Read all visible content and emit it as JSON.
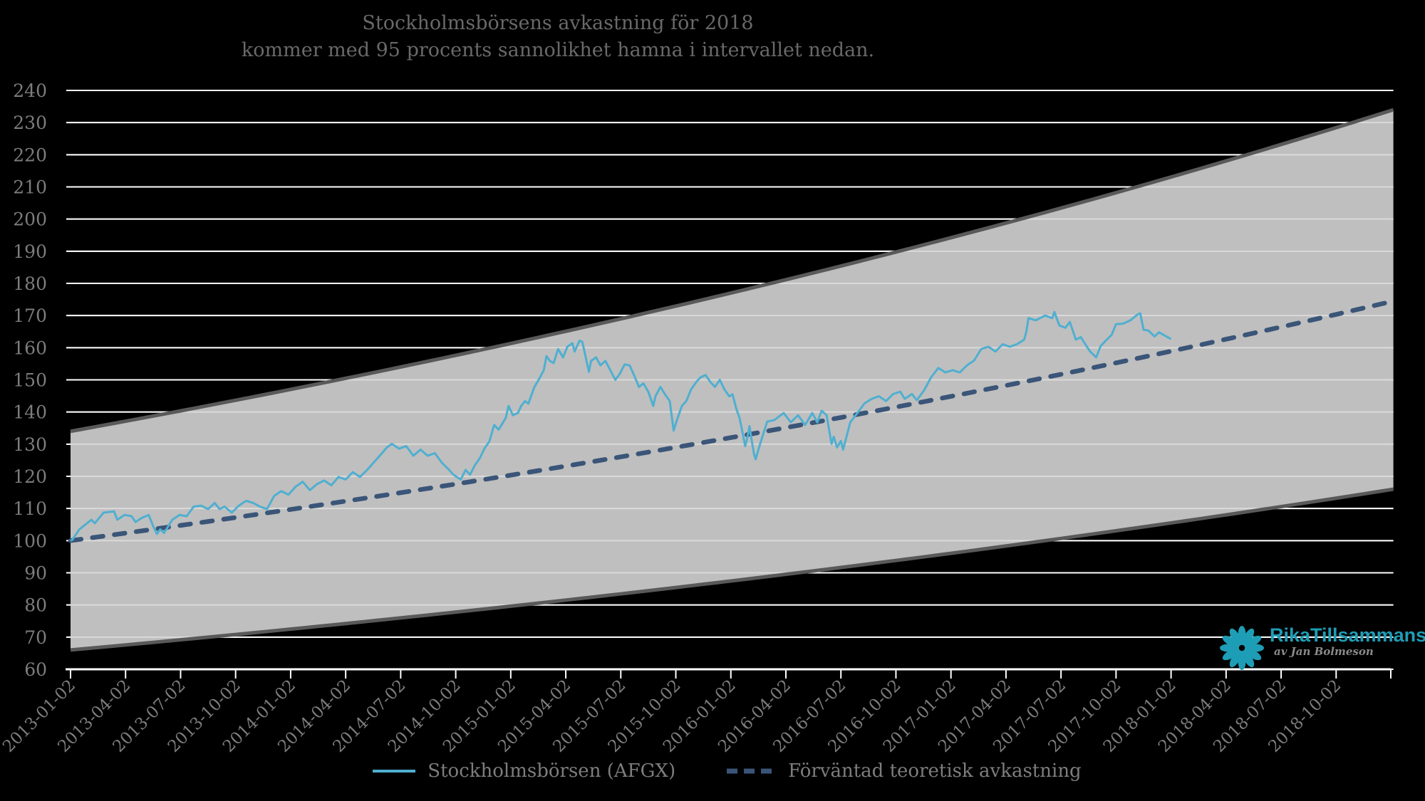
{
  "title": {
    "line1": "Stockholmsbörsens avkastning för 2018",
    "line2": "kommer med 95 procents sannolikhet hamna i intervallet nedan."
  },
  "legend": {
    "series1": "Stockholmsbörsen (AFGX)",
    "series2": "Förväntad teoretisk avkastning"
  },
  "logo": {
    "brand": "RikaTillsammans",
    "byline": "av Jan Bolmeson",
    "color": "#1e9db6"
  },
  "colors": {
    "background": "#000000",
    "band_fill": "#bfbfbf",
    "band_border": "#595959",
    "gridline": "#ffffff",
    "afgx_line": "#4fafd0",
    "expected_line": "#3a5578",
    "tick_text": "#7d7d7d",
    "title_text": "#696969"
  },
  "chart_data": {
    "type": "line",
    "title": "Stockholmsbörsens avkastning för 2018 kommer med 95 procents sannolikhet hamna i intervallet nedan.",
    "x_axis": {
      "unit": "quarterly dates",
      "tick_labels": [
        "2013-01-02",
        "2013-04-02",
        "2013-07-02",
        "2013-10-02",
        "2014-01-02",
        "2014-04-02",
        "2014-07-02",
        "2014-10-02",
        "2015-01-02",
        "2015-04-02",
        "2015-07-02",
        "2015-10-02",
        "2016-01-02",
        "2016-04-02",
        "2016-07-02",
        "2016-10-02",
        "2017-01-02",
        "2017-04-02",
        "2017-07-02",
        "2017-10-02",
        "2018-01-02",
        "2018-04-02",
        "2018-07-02",
        "2018-10-02"
      ]
    },
    "y_axis": {
      "min": 60,
      "max": 240,
      "ticks": [
        240,
        230,
        220,
        210,
        200,
        190,
        180,
        170,
        160,
        150,
        140,
        130,
        120,
        110,
        100,
        90,
        80,
        70,
        60
      ]
    },
    "band": {
      "label": "95% probability interval",
      "lower_start": 66,
      "lower_end": 116,
      "upper_start": 134,
      "upper_end": 234,
      "end_quarter": 24.04,
      "interpolation": "exponential"
    },
    "expected": {
      "name": "Förväntad teoretisk avkastning",
      "start": 100,
      "end": 174.5,
      "end_quarter": 24.04,
      "interpolation": "exponential"
    },
    "series": [
      {
        "name": "Stockholmsbörsen (AFGX)",
        "points": [
          [
            0,
            100
          ],
          [
            0.03,
            100.2
          ],
          [
            0.16,
            103.5
          ],
          [
            0.38,
            106.5
          ],
          [
            0.44,
            105.4
          ],
          [
            0.6,
            108.7
          ],
          [
            0.79,
            109.1
          ],
          [
            0.85,
            106.5
          ],
          [
            0.98,
            108
          ],
          [
            1.11,
            107.6
          ],
          [
            1.18,
            105.8
          ],
          [
            1.31,
            107.2
          ],
          [
            1.42,
            108
          ],
          [
            1.5,
            104.6
          ],
          [
            1.57,
            102.1
          ],
          [
            1.63,
            103.5
          ],
          [
            1.7,
            102.4
          ],
          [
            1.85,
            106.5
          ],
          [
            1.98,
            108
          ],
          [
            2.11,
            107.6
          ],
          [
            2.24,
            110.6
          ],
          [
            2.37,
            110.9
          ],
          [
            2.5,
            109.8
          ],
          [
            2.62,
            111.7
          ],
          [
            2.71,
            109.8
          ],
          [
            2.8,
            110.6
          ],
          [
            2.93,
            108.7
          ],
          [
            3.06,
            110.9
          ],
          [
            3.19,
            112.4
          ],
          [
            3.32,
            111.7
          ],
          [
            3.44,
            110.6
          ],
          [
            3.57,
            109.8
          ],
          [
            3.7,
            113.9
          ],
          [
            3.83,
            115.4
          ],
          [
            3.96,
            114.3
          ],
          [
            4.09,
            116.8
          ],
          [
            4.22,
            118.3
          ],
          [
            4.35,
            115.7
          ],
          [
            4.48,
            117.6
          ],
          [
            4.61,
            118.7
          ],
          [
            4.74,
            117.2
          ],
          [
            4.87,
            119.8
          ],
          [
            5,
            119
          ],
          [
            5.13,
            121.3
          ],
          [
            5.26,
            119.8
          ],
          [
            5.39,
            122
          ],
          [
            5.52,
            124.5
          ],
          [
            5.65,
            127
          ],
          [
            5.75,
            129
          ],
          [
            5.84,
            130.1
          ],
          [
            5.97,
            128.6
          ],
          [
            6.1,
            129.4
          ],
          [
            6.23,
            126.4
          ],
          [
            6.36,
            128.3
          ],
          [
            6.49,
            126.4
          ],
          [
            6.62,
            127.2
          ],
          [
            6.75,
            124.2
          ],
          [
            6.88,
            122
          ],
          [
            6.96,
            120.5
          ],
          [
            7.09,
            119
          ],
          [
            7.18,
            122
          ],
          [
            7.26,
            120.5
          ],
          [
            7.35,
            123.5
          ],
          [
            7.44,
            125.7
          ],
          [
            7.52,
            128.6
          ],
          [
            7.61,
            130.8
          ],
          [
            7.7,
            136
          ],
          [
            7.78,
            134.5
          ],
          [
            7.91,
            138.2
          ],
          [
            7.96,
            141.9
          ],
          [
            8.04,
            139
          ],
          [
            8.13,
            139.7
          ],
          [
            8.19,
            141.9
          ],
          [
            8.26,
            143.4
          ],
          [
            8.32,
            142.6
          ],
          [
            8.43,
            147.8
          ],
          [
            8.52,
            150.4
          ],
          [
            8.6,
            153
          ],
          [
            8.65,
            157.4
          ],
          [
            8.71,
            155.9
          ],
          [
            8.78,
            155.2
          ],
          [
            8.86,
            159.6
          ],
          [
            8.95,
            157
          ],
          [
            9.03,
            160.3
          ],
          [
            9.12,
            161.4
          ],
          [
            9.16,
            158.8
          ],
          [
            9.25,
            162.2
          ],
          [
            9.3,
            161.8
          ],
          [
            9.34,
            158.8
          ],
          [
            9.42,
            152.5
          ],
          [
            9.46,
            155.9
          ],
          [
            9.55,
            157
          ],
          [
            9.63,
            154.5
          ],
          [
            9.72,
            155.9
          ],
          [
            9.81,
            153
          ],
          [
            9.9,
            150
          ],
          [
            9.98,
            151.8
          ],
          [
            10.07,
            154.8
          ],
          [
            10.16,
            154.5
          ],
          [
            10.24,
            151.5
          ],
          [
            10.33,
            147.8
          ],
          [
            10.41,
            148.9
          ],
          [
            10.5,
            146.3
          ],
          [
            10.59,
            141.9
          ],
          [
            10.63,
            144.9
          ],
          [
            10.72,
            147.8
          ],
          [
            10.8,
            145.6
          ],
          [
            10.89,
            143.4
          ],
          [
            10.96,
            134.2
          ],
          [
            11.02,
            137.5
          ],
          [
            11.11,
            141.9
          ],
          [
            11.19,
            143.4
          ],
          [
            11.28,
            147.1
          ],
          [
            11.37,
            149.3
          ],
          [
            11.45,
            150.8
          ],
          [
            11.54,
            151.5
          ],
          [
            11.63,
            149.3
          ],
          [
            11.71,
            147.8
          ],
          [
            11.8,
            150
          ],
          [
            11.88,
            147.1
          ],
          [
            11.97,
            144.9
          ],
          [
            12.03,
            145.5
          ],
          [
            12.1,
            141
          ],
          [
            12.16,
            138
          ],
          [
            12.22,
            133
          ],
          [
            12.26,
            129.4
          ],
          [
            12.3,
            132
          ],
          [
            12.34,
            135.6
          ],
          [
            12.38,
            131
          ],
          [
            12.42,
            127
          ],
          [
            12.45,
            125.3
          ],
          [
            12.53,
            130
          ],
          [
            12.66,
            137
          ],
          [
            12.79,
            137.5
          ],
          [
            12.96,
            139.7
          ],
          [
            13.09,
            136.8
          ],
          [
            13.22,
            139
          ],
          [
            13.35,
            136
          ],
          [
            13.48,
            139.7
          ],
          [
            13.57,
            136.8
          ],
          [
            13.65,
            140.4
          ],
          [
            13.74,
            139
          ],
          [
            13.83,
            130.1
          ],
          [
            13.87,
            132.3
          ],
          [
            13.93,
            129
          ],
          [
            14,
            131
          ],
          [
            14.04,
            128.3
          ],
          [
            14.17,
            136.8
          ],
          [
            14.3,
            139.7
          ],
          [
            14.43,
            142.7
          ],
          [
            14.56,
            144.1
          ],
          [
            14.69,
            144.9
          ],
          [
            14.82,
            143.4
          ],
          [
            14.95,
            145.6
          ],
          [
            15.08,
            146.3
          ],
          [
            15.16,
            144.1
          ],
          [
            15.29,
            145.6
          ],
          [
            15.38,
            143.7
          ],
          [
            15.51,
            146.7
          ],
          [
            15.64,
            150.8
          ],
          [
            15.77,
            153.7
          ],
          [
            15.9,
            152.3
          ],
          [
            16.03,
            153
          ],
          [
            16.16,
            152.3
          ],
          [
            16.29,
            154.5
          ],
          [
            16.42,
            156
          ],
          [
            16.55,
            159.6
          ],
          [
            16.68,
            160.3
          ],
          [
            16.81,
            158.8
          ],
          [
            16.94,
            161.1
          ],
          [
            17.07,
            160.3
          ],
          [
            17.2,
            161.1
          ],
          [
            17.33,
            162.5
          ],
          [
            17.37,
            165
          ],
          [
            17.41,
            169.2
          ],
          [
            17.54,
            168.5
          ],
          [
            17.71,
            170
          ],
          [
            17.84,
            169.2
          ],
          [
            17.88,
            171.1
          ],
          [
            17.97,
            166.9
          ],
          [
            18.08,
            166.2
          ],
          [
            18.16,
            168
          ],
          [
            18.27,
            162.5
          ],
          [
            18.36,
            163.3
          ],
          [
            18.47,
            160.3
          ],
          [
            18.53,
            158.8
          ],
          [
            18.64,
            157
          ],
          [
            18.72,
            160.5
          ],
          [
            18.83,
            162.5
          ],
          [
            18.92,
            164
          ],
          [
            19,
            167.3
          ],
          [
            19.13,
            167.5
          ],
          [
            19.26,
            168.5
          ],
          [
            19.39,
            170.3
          ],
          [
            19.44,
            170.7
          ],
          [
            19.5,
            165.6
          ],
          [
            19.59,
            165.3
          ],
          [
            19.7,
            163.5
          ],
          [
            19.78,
            164.8
          ],
          [
            19.87,
            163.9
          ],
          [
            20,
            162.7
          ]
        ]
      }
    ],
    "layout": {
      "grid": true,
      "legend_position": "bottom-center",
      "x_tick_rotation_deg": -45
    }
  }
}
